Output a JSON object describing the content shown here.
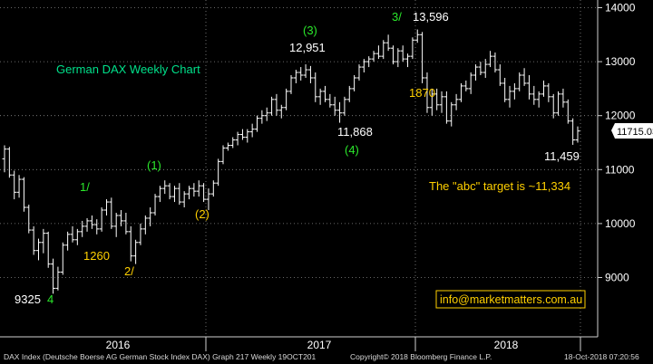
{
  "chart_data": {
    "type": "ohlc",
    "title": "German DAX Weekly Chart",
    "ylim": [
      8300,
      14200
    ],
    "yticks": [
      "9000",
      "10000",
      "11000",
      "12000",
      "13000",
      "14000"
    ],
    "x_year_labels": [
      "2016",
      "2017",
      "2018"
    ],
    "last_price_label": "11715.03",
    "series_name": "DAX Index",
    "weekly_ohlc": [
      [
        11200,
        11450,
        10950,
        11380
      ],
      [
        11380,
        11420,
        10850,
        10900
      ],
      [
        10900,
        10980,
        10450,
        10580
      ],
      [
        10580,
        10900,
        10480,
        10820
      ],
      [
        10820,
        10860,
        10220,
        10300
      ],
      [
        10300,
        10350,
        9820,
        9880
      ],
      [
        9880,
        9950,
        9420,
        9500
      ],
      [
        9500,
        9720,
        9320,
        9650
      ],
      [
        9650,
        9900,
        9450,
        9820
      ],
      [
        9820,
        9850,
        9180,
        9250
      ],
      [
        9250,
        9350,
        8700,
        8800
      ],
      [
        8800,
        9200,
        8760,
        9100
      ],
      [
        9100,
        9650,
        9050,
        9600
      ],
      [
        9600,
        9850,
        9500,
        9800
      ],
      [
        9800,
        9950,
        9650,
        9700
      ],
      [
        9700,
        9900,
        9600,
        9850
      ],
      [
        9850,
        10050,
        9750,
        9950
      ],
      [
        9950,
        10100,
        9850,
        10050
      ],
      [
        10050,
        10150,
        9900,
        9980
      ],
      [
        9980,
        10080,
        9800,
        9900
      ],
      [
        9900,
        10300,
        9850,
        10250
      ],
      [
        10250,
        10450,
        10150,
        10400
      ],
      [
        10400,
        10480,
        9900,
        9950
      ],
      [
        9950,
        10200,
        9750,
        10150
      ],
      [
        10150,
        10250,
        9950,
        10050
      ],
      [
        10050,
        10200,
        9800,
        9850
      ],
      [
        9850,
        9950,
        9300,
        9400
      ],
      [
        9400,
        9700,
        9250,
        9650
      ],
      [
        9650,
        10000,
        9600,
        9900
      ],
      [
        9900,
        10150,
        9800,
        10100
      ],
      [
        10100,
        10300,
        9950,
        10200
      ],
      [
        10200,
        10550,
        10150,
        10500
      ],
      [
        10500,
        10700,
        10400,
        10650
      ],
      [
        10650,
        10800,
        10550,
        10700
      ],
      [
        10700,
        10750,
        10450,
        10500
      ],
      [
        10500,
        10700,
        10400,
        10650
      ],
      [
        10650,
        10750,
        10350,
        10400
      ],
      [
        10400,
        10600,
        10300,
        10550
      ],
      [
        10550,
        10700,
        10450,
        10650
      ],
      [
        10650,
        10750,
        10500,
        10600
      ],
      [
        10600,
        10800,
        10500,
        10700
      ],
      [
        10700,
        10750,
        10400,
        10450
      ],
      [
        10450,
        10650,
        10250,
        10550
      ],
      [
        10550,
        10800,
        10500,
        10750
      ],
      [
        10750,
        11200,
        10700,
        11150
      ],
      [
        11150,
        11450,
        11100,
        11400
      ],
      [
        11400,
        11500,
        11350,
        11450
      ],
      [
        11450,
        11600,
        11400,
        11550
      ],
      [
        11550,
        11700,
        11450,
        11650
      ],
      [
        11650,
        11750,
        11550,
        11600
      ],
      [
        11600,
        11750,
        11500,
        11700
      ],
      [
        11700,
        11850,
        11600,
        11750
      ],
      [
        11750,
        12000,
        11700,
        11950
      ],
      [
        11950,
        12100,
        11850,
        12000
      ],
      [
        12000,
        12150,
        11900,
        12050
      ],
      [
        12050,
        12350,
        12000,
        12300
      ],
      [
        12300,
        12400,
        12000,
        12100
      ],
      [
        12100,
        12200,
        11950,
        12150
      ],
      [
        12150,
        12500,
        12100,
        12450
      ],
      [
        12450,
        12750,
        12400,
        12700
      ],
      [
        12700,
        12850,
        12600,
        12800
      ],
      [
        12800,
        12900,
        12650,
        12750
      ],
      [
        12750,
        12951,
        12700,
        12850
      ],
      [
        12850,
        12920,
        12600,
        12700
      ],
      [
        12700,
        12800,
        12250,
        12350
      ],
      [
        12350,
        12500,
        12200,
        12450
      ],
      [
        12450,
        12550,
        12250,
        12300
      ],
      [
        12300,
        12400,
        12150,
        12200
      ],
      [
        12200,
        12350,
        12000,
        12100
      ],
      [
        12100,
        12250,
        11868,
        12050
      ],
      [
        12050,
        12350,
        12000,
        12300
      ],
      [
        12300,
        12550,
        12250,
        12500
      ],
      [
        12500,
        12750,
        12450,
        12700
      ],
      [
        12700,
        12950,
        12650,
        12900
      ],
      [
        12900,
        13050,
        12800,
        13000
      ],
      [
        13000,
        13100,
        12900,
        13050
      ],
      [
        13050,
        13200,
        13000,
        13150
      ],
      [
        13150,
        13300,
        13050,
        13100
      ],
      [
        13100,
        13400,
        13050,
        13350
      ],
      [
        13350,
        13500,
        13200,
        13250
      ],
      [
        13250,
        13300,
        12950,
        13000
      ],
      [
        13000,
        13250,
        12900,
        13200
      ],
      [
        13200,
        13300,
        13000,
        13050
      ],
      [
        13050,
        13150,
        12900,
        13100
      ],
      [
        13100,
        13450,
        13050,
        13400
      ],
      [
        13400,
        13596,
        13350,
        13500
      ],
      [
        13500,
        13550,
        12600,
        12700
      ],
      [
        12700,
        12800,
        12050,
        12150
      ],
      [
        12150,
        12500,
        12000,
        12400
      ],
      [
        12400,
        12500,
        12100,
        12200
      ],
      [
        12200,
        12450,
        12050,
        12350
      ],
      [
        12350,
        12450,
        11850,
        11900
      ],
      [
        11900,
        12250,
        11800,
        12200
      ],
      [
        12200,
        12400,
        12100,
        12300
      ],
      [
        12300,
        12600,
        12250,
        12550
      ],
      [
        12550,
        12650,
        12450,
        12500
      ],
      [
        12500,
        12800,
        12400,
        12750
      ],
      [
        12750,
        12950,
        12650,
        12900
      ],
      [
        12900,
        13000,
        12750,
        12800
      ],
      [
        12800,
        13050,
        12700,
        12950
      ],
      [
        12950,
        13200,
        12900,
        13100
      ],
      [
        13100,
        13170,
        12800,
        12850
      ],
      [
        12850,
        12950,
        12550,
        12600
      ],
      [
        12600,
        12700,
        12250,
        12300
      ],
      [
        12300,
        12550,
        12150,
        12450
      ],
      [
        12450,
        12600,
        12300,
        12500
      ],
      [
        12500,
        12800,
        12450,
        12750
      ],
      [
        12750,
        12880,
        12550,
        12600
      ],
      [
        12600,
        12750,
        12300,
        12400
      ],
      [
        12400,
        12550,
        12200,
        12300
      ],
      [
        12300,
        12450,
        12150,
        12400
      ],
      [
        12400,
        12650,
        12350,
        12550
      ],
      [
        12550,
        12600,
        12250,
        12350
      ],
      [
        12350,
        12400,
        11950,
        12050
      ],
      [
        12050,
        12450,
        12000,
        12400
      ],
      [
        12400,
        12500,
        12150,
        12250
      ],
      [
        12250,
        12300,
        11850,
        11900
      ],
      [
        11900,
        11950,
        11459,
        11550
      ],
      [
        11550,
        11800,
        11500,
        11715
      ]
    ],
    "annotations": [
      {
        "text": "German DAX Weekly Chart",
        "color": "#00e08a"
      },
      {
        "text": "(3)",
        "color": "#2be82b"
      },
      {
        "text": "12,951",
        "color": "#ffffff"
      },
      {
        "text": "3/",
        "color": "#2be82b"
      },
      {
        "text": "13,596",
        "color": "#ffffff"
      },
      {
        "text": "1870",
        "color": "#ffd000"
      },
      {
        "text": "11,868",
        "color": "#ffffff"
      },
      {
        "text": "(4)",
        "color": "#2be82b"
      },
      {
        "text": "(1)",
        "color": "#2be82b"
      },
      {
        "text": "1/",
        "color": "#2be82b"
      },
      {
        "text": "1260",
        "color": "#ffd000"
      },
      {
        "text": "(2)",
        "color": "#ffd000"
      },
      {
        "text": "2/",
        "color": "#ffd000"
      },
      {
        "text": "9325",
        "color": "#ffffff"
      },
      {
        "text": "4",
        "color": "#2be82b"
      },
      {
        "text": "11,459",
        "color": "#ffffff"
      },
      {
        "text": "The \"abc\" target is ~11,334",
        "color": "#ffd000"
      }
    ],
    "contact_box": {
      "text": "info@marketmatters.com.au",
      "color": "#ffd000"
    },
    "colors": {
      "background": "#000000",
      "bars": "#ffffff",
      "grid": "#8a8a8a"
    }
  },
  "footer": {
    "source": "DAX Index (Deutsche Boerse AG German Stock Index DAX) Graph 217  Weekly 19OCT201",
    "copyright": "Copyright© 2018 Bloomberg Finance L.P.",
    "timestamp": "18-Oct-2018 07:20:56"
  }
}
